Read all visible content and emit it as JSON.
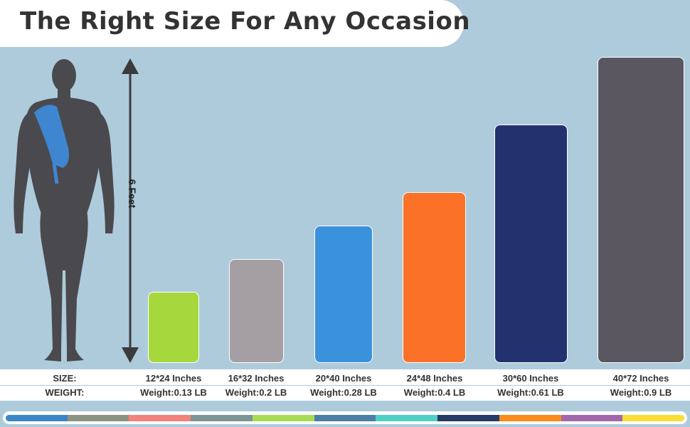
{
  "title": "The Right Size For Any Occasion",
  "height_label": "6 Feet",
  "row_labels": {
    "size": "SIZE:",
    "weight": "WEIGHT:"
  },
  "towels": [
    {
      "size": "12*24 Inches",
      "weight": "Weight:0.13 LB",
      "color": "#a6d83e"
    },
    {
      "size": "16*32 Inches",
      "weight": "Weight:0.2 LB",
      "color": "#a59fa4"
    },
    {
      "size": "20*40 Inches",
      "weight": "Weight:0.28 LB",
      "color": "#3a92dc"
    },
    {
      "size": "24*48 Inches",
      "weight": "Weight:0.4 LB",
      "color": "#fb7127"
    },
    {
      "size": "30*60 Inches",
      "weight": "Weight:0.61 LB",
      "color": "#23326e"
    },
    {
      "size": "40*72 Inches",
      "weight": "Weight:0.9 LB",
      "color": "#5a5760"
    }
  ],
  "colors": {
    "background": "#aecbdc",
    "figure": "#4a4a4e",
    "sling": "#3f86d0",
    "arrow": "#3b3b3b"
  },
  "palette": [
    "#3a86c6",
    "#8c9380",
    "#f4827c",
    "#7d9695",
    "#a6dc53",
    "#4c7fa5",
    "#4fd0c6",
    "#253a69",
    "#fa8c1c",
    "#a169ad",
    "#f9de36"
  ]
}
